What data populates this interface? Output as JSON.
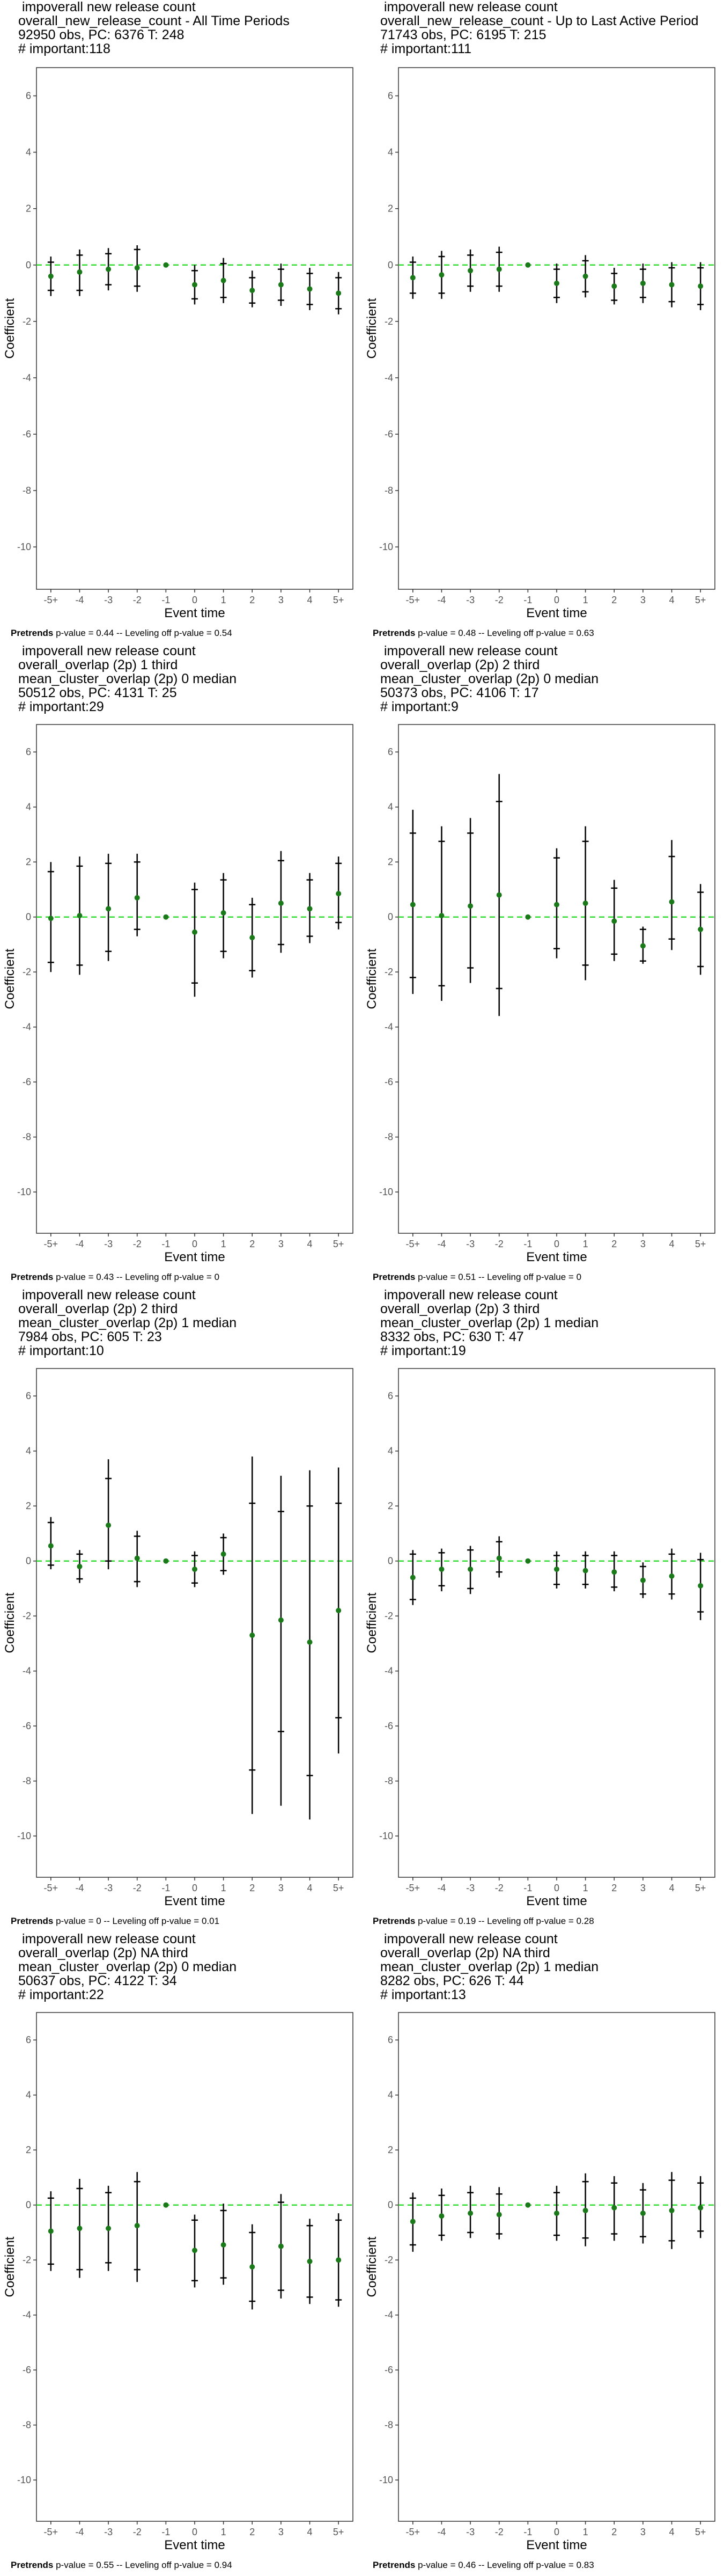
{
  "chart_data": [
    {
      "type": "scatter",
      "title_lines": [
        " impoverall new release count",
        "overall_new_release_count - All Time Periods",
        "92950 obs, PC: 6376 T: 248",
        "# important:118"
      ],
      "footer_bold": "Pretrends",
      "footer_rest": " p-value = 0.44 -- Leveling off p-value = 0.54",
      "xlabel": "Event time",
      "ylabel": "Coefficient",
      "categories": [
        "-5+",
        "-4",
        "-3",
        "-2",
        "-1",
        "0",
        "1",
        "2",
        "3",
        "4",
        "5+"
      ],
      "ylim": [
        -11.5,
        7
      ],
      "yticks": [
        6,
        4,
        2,
        0,
        -2,
        -4,
        -6,
        -8,
        -10
      ],
      "estimate": [
        -0.4,
        -0.25,
        -0.15,
        -0.1,
        0,
        -0.7,
        -0.55,
        -0.9,
        -0.7,
        -0.85,
        -1.0
      ],
      "ci95_low": [
        -1.1,
        -1.1,
        -0.9,
        -0.95,
        0,
        -1.4,
        -1.35,
        -1.5,
        -1.45,
        -1.6,
        -1.75
      ],
      "ci95_high": [
        0.3,
        0.55,
        0.6,
        0.7,
        0,
        0.0,
        0.25,
        -0.2,
        0.05,
        -0.1,
        -0.25
      ],
      "ci90_low": [
        -0.9,
        -0.9,
        -0.7,
        -0.75,
        0,
        -1.2,
        -1.15,
        -1.35,
        -1.25,
        -1.4,
        -1.55
      ],
      "ci90_high": [
        0.1,
        0.35,
        0.4,
        0.55,
        0,
        -0.2,
        0.05,
        -0.45,
        -0.15,
        -0.3,
        -0.45
      ]
    },
    {
      "type": "scatter",
      "title_lines": [
        " impoverall new release count",
        "overall_new_release_count - Up to Last Active Period",
        "71743 obs, PC: 6195 T: 215",
        "# important:111"
      ],
      "footer_bold": "Pretrends",
      "footer_rest": " p-value = 0.48 -- Leveling off p-value = 0.63",
      "xlabel": "Event time",
      "ylabel": "Coefficient",
      "categories": [
        "-5+",
        "-4",
        "-3",
        "-2",
        "-1",
        "0",
        "1",
        "2",
        "3",
        "4",
        "5+"
      ],
      "ylim": [
        -11.5,
        7
      ],
      "yticks": [
        6,
        4,
        2,
        0,
        -2,
        -4,
        -6,
        -8,
        -10
      ],
      "estimate": [
        -0.45,
        -0.35,
        -0.2,
        -0.15,
        0,
        -0.65,
        -0.4,
        -0.75,
        -0.65,
        -0.7,
        -0.75
      ],
      "ci95_low": [
        -1.2,
        -1.2,
        -0.95,
        -0.95,
        0,
        -1.35,
        -1.15,
        -1.4,
        -1.35,
        -1.5,
        -1.6
      ],
      "ci95_high": [
        0.3,
        0.5,
        0.55,
        0.65,
        0,
        0.05,
        0.35,
        -0.1,
        0.05,
        0.1,
        0.1
      ],
      "ci90_low": [
        -1.0,
        -1.0,
        -0.75,
        -0.75,
        0,
        -1.15,
        -0.95,
        -1.25,
        -1.15,
        -1.3,
        -1.4
      ],
      "ci90_high": [
        0.1,
        0.3,
        0.35,
        0.45,
        0,
        -0.15,
        0.15,
        -0.3,
        -0.15,
        -0.1,
        -0.1
      ]
    },
    {
      "type": "scatter",
      "title_lines": [
        " impoverall new release count",
        "overall_overlap (2p) 1 third",
        "mean_cluster_overlap (2p) 0 median",
        "50512 obs, PC: 4131 T: 25",
        "# important:29"
      ],
      "footer_bold": "Pretrends",
      "footer_rest": " p-value = 0.43 -- Leveling off p-value = 0",
      "xlabel": "Event time",
      "ylabel": "Coefficient",
      "categories": [
        "-5+",
        "-4",
        "-3",
        "-2",
        "-1",
        "0",
        "1",
        "2",
        "3",
        "4",
        "5+"
      ],
      "ylim": [
        -11.5,
        7
      ],
      "yticks": [
        6,
        4,
        2,
        0,
        -2,
        -4,
        -6,
        -8,
        -10
      ],
      "estimate": [
        -0.05,
        0.05,
        0.3,
        0.7,
        0,
        -0.55,
        0.15,
        -0.75,
        0.5,
        0.3,
        0.85
      ],
      "ci95_low": [
        -2.0,
        -2.1,
        -1.6,
        -0.7,
        0,
        -2.9,
        -1.5,
        -2.2,
        -1.3,
        -0.95,
        -0.45
      ],
      "ci95_high": [
        2.0,
        2.2,
        2.3,
        2.3,
        0,
        1.25,
        1.6,
        0.7,
        2.4,
        1.6,
        2.2
      ],
      "ci90_low": [
        -1.65,
        -1.75,
        -1.25,
        -0.45,
        0,
        -2.4,
        -1.25,
        -1.95,
        -1.0,
        -0.7,
        -0.2
      ],
      "ci90_high": [
        1.65,
        1.85,
        1.95,
        2.0,
        0,
        1.0,
        1.35,
        0.45,
        2.05,
        1.35,
        1.95
      ]
    },
    {
      "type": "scatter",
      "title_lines": [
        " impoverall new release count",
        "overall_overlap (2p) 2 third",
        "mean_cluster_overlap (2p) 0 median",
        "50373 obs, PC: 4106 T: 17",
        "# important:9"
      ],
      "footer_bold": "Pretrends",
      "footer_rest": " p-value = 0.51 -- Leveling off p-value = 0",
      "xlabel": "Event time",
      "ylabel": "Coefficient",
      "categories": [
        "-5+",
        "-4",
        "-3",
        "-2",
        "-1",
        "0",
        "1",
        "2",
        "3",
        "4",
        "5+"
      ],
      "ylim": [
        -11.5,
        7
      ],
      "yticks": [
        6,
        4,
        2,
        0,
        -2,
        -4,
        -6,
        -8,
        -10
      ],
      "estimate": [
        0.45,
        0.05,
        0.4,
        0.8,
        0,
        0.45,
        0.5,
        -0.15,
        -1.05,
        0.55,
        -0.45
      ],
      "ci95_low": [
        -2.8,
        -3.05,
        -2.4,
        -3.6,
        0,
        -1.5,
        -2.3,
        -1.6,
        -1.7,
        -1.2,
        -2.1
      ],
      "ci95_high": [
        3.9,
        3.3,
        3.6,
        5.2,
        0,
        2.5,
        3.3,
        1.35,
        -0.35,
        2.8,
        1.2
      ],
      "ci90_low": [
        -2.2,
        -2.5,
        -1.85,
        -2.6,
        0,
        -1.15,
        -1.75,
        -1.35,
        -1.6,
        -0.8,
        -1.8
      ],
      "ci90_high": [
        3.05,
        2.75,
        3.05,
        4.2,
        0,
        2.15,
        2.75,
        1.05,
        -0.45,
        2.2,
        0.9
      ]
    },
    {
      "type": "scatter",
      "title_lines": [
        " impoverall new release count",
        "overall_overlap (2p) 2 third",
        "mean_cluster_overlap (2p) 1 median",
        "7984 obs, PC: 605 T: 23",
        "# important:10"
      ],
      "footer_bold": "Pretrends",
      "footer_rest": " p-value = 0 -- Leveling off p-value = 0.01",
      "xlabel": "Event time",
      "ylabel": "Coefficient",
      "categories": [
        "-5+",
        "-4",
        "-3",
        "-2",
        "-1",
        "0",
        "1",
        "2",
        "3",
        "4",
        "5+"
      ],
      "ylim": [
        -11.5,
        7
      ],
      "yticks": [
        6,
        4,
        2,
        0,
        -2,
        -4,
        -6,
        -8,
        -10
      ],
      "estimate": [
        0.55,
        -0.2,
        1.3,
        0.1,
        0,
        -0.3,
        0.25,
        -2.7,
        -2.15,
        -2.95,
        -1.8
      ],
      "ci95_low": [
        -0.3,
        -0.8,
        -0.3,
        -0.95,
        0,
        -0.95,
        -0.5,
        -9.2,
        -8.9,
        -9.4,
        -7.0
      ],
      "ci95_high": [
        1.6,
        0.4,
        3.7,
        1.1,
        0,
        0.35,
        1.0,
        3.8,
        3.1,
        3.3,
        3.4
      ],
      "ci90_low": [
        -0.15,
        -0.65,
        0.0,
        -0.75,
        0,
        -0.8,
        -0.35,
        -7.6,
        -6.2,
        -7.8,
        -5.7
      ],
      "ci90_high": [
        1.4,
        0.25,
        3.0,
        0.9,
        0,
        0.2,
        0.85,
        2.1,
        1.8,
        2.0,
        2.1
      ]
    },
    {
      "type": "scatter",
      "title_lines": [
        " impoverall new release count",
        "overall_overlap (2p) 3 third",
        "mean_cluster_overlap (2p) 1 median",
        "8332 obs, PC: 630 T: 47",
        "# important:19"
      ],
      "footer_bold": "Pretrends",
      "footer_rest": " p-value = 0.19 -- Leveling off p-value = 0.28",
      "xlabel": "Event time",
      "ylabel": "Coefficient",
      "categories": [
        "-5+",
        "-4",
        "-3",
        "-2",
        "-1",
        "0",
        "1",
        "2",
        "3",
        "4",
        "5+"
      ],
      "ylim": [
        -11.5,
        7
      ],
      "yticks": [
        6,
        4,
        2,
        0,
        -2,
        -4,
        -6,
        -8,
        -10
      ],
      "estimate": [
        -0.6,
        -0.3,
        -0.3,
        0.1,
        0,
        -0.3,
        -0.35,
        -0.4,
        -0.7,
        -0.55,
        -0.9
      ],
      "ci95_low": [
        -1.6,
        -1.1,
        -1.2,
        -0.6,
        0,
        -1.0,
        -1.0,
        -1.1,
        -1.35,
        -1.4,
        -2.15
      ],
      "ci95_high": [
        0.4,
        0.45,
        0.55,
        0.9,
        0,
        0.35,
        0.35,
        0.35,
        -0.05,
        0.45,
        0.3
      ],
      "ci90_low": [
        -1.4,
        -0.9,
        -1.0,
        -0.4,
        0,
        -0.85,
        -0.85,
        -0.95,
        -1.2,
        -1.2,
        -1.85
      ],
      "ci90_high": [
        0.25,
        0.3,
        0.4,
        0.7,
        0,
        0.2,
        0.2,
        0.2,
        -0.2,
        0.25,
        0.05
      ]
    },
    {
      "type": "scatter",
      "title_lines": [
        " impoverall new release count",
        "overall_overlap (2p) NA third",
        "mean_cluster_overlap (2p) 0 median",
        "50637 obs, PC: 4122 T: 34",
        "# important:22"
      ],
      "footer_bold": "Pretrends",
      "footer_rest": " p-value = 0.55 -- Leveling off p-value = 0.94",
      "xlabel": "Event time",
      "ylabel": "Coefficient",
      "categories": [
        "-5+",
        "-4",
        "-3",
        "-2",
        "-1",
        "0",
        "1",
        "2",
        "3",
        "4",
        "5+"
      ],
      "ylim": [
        -11.5,
        7
      ],
      "yticks": [
        6,
        4,
        2,
        0,
        -2,
        -4,
        -6,
        -8,
        -10
      ],
      "estimate": [
        -0.95,
        -0.85,
        -0.85,
        -0.75,
        0,
        -1.65,
        -1.45,
        -2.25,
        -1.5,
        -2.05,
        -2.0
      ],
      "ci95_low": [
        -2.4,
        -2.65,
        -2.4,
        -2.8,
        0,
        -3.0,
        -2.9,
        -3.8,
        -3.4,
        -3.6,
        -3.7
      ],
      "ci95_high": [
        0.5,
        0.95,
        0.7,
        1.2,
        0,
        -0.35,
        0.05,
        -0.7,
        0.4,
        -0.5,
        -0.3
      ],
      "ci90_low": [
        -2.15,
        -2.35,
        -2.1,
        -2.35,
        0,
        -2.75,
        -2.65,
        -3.5,
        -3.1,
        -3.35,
        -3.45
      ],
      "ci90_high": [
        0.25,
        0.6,
        0.45,
        0.85,
        0,
        -0.55,
        -0.2,
        -1.0,
        0.1,
        -0.75,
        -0.55
      ]
    },
    {
      "type": "scatter",
      "title_lines": [
        " impoverall new release count",
        "overall_overlap (2p) NA third",
        "mean_cluster_overlap (2p) 1 median",
        "8282 obs, PC: 626 T: 44",
        "# important:13"
      ],
      "footer_bold": "Pretrends",
      "footer_rest": " p-value = 0.46 -- Leveling off p-value = 0.83",
      "xlabel": "Event time",
      "ylabel": "Coefficient",
      "categories": [
        "-5+",
        "-4",
        "-3",
        "-2",
        "-1",
        "0",
        "1",
        "2",
        "3",
        "4",
        "5+"
      ],
      "ylim": [
        -11.5,
        7
      ],
      "yticks": [
        6,
        4,
        2,
        0,
        -2,
        -4,
        -6,
        -8,
        -10
      ],
      "estimate": [
        -0.6,
        -0.4,
        -0.3,
        -0.35,
        0,
        -0.3,
        -0.2,
        -0.1,
        -0.3,
        -0.2,
        -0.1
      ],
      "ci95_low": [
        -1.7,
        -1.3,
        -1.2,
        -1.25,
        0,
        -1.3,
        -1.5,
        -1.3,
        -1.4,
        -1.6,
        -1.2
      ],
      "ci95_high": [
        0.45,
        0.6,
        0.7,
        0.65,
        0,
        0.7,
        1.15,
        1.05,
        0.8,
        1.2,
        1.05
      ],
      "ci90_low": [
        -1.45,
        -1.1,
        -1.0,
        -1.05,
        0,
        -1.1,
        -1.2,
        -1.05,
        -1.15,
        -1.3,
        -0.95
      ],
      "ci90_high": [
        0.25,
        0.35,
        0.45,
        0.4,
        0,
        0.45,
        0.85,
        0.8,
        0.55,
        0.9,
        0.8
      ]
    }
  ],
  "colors": {
    "point": "#1a7a1a",
    "zero_line": "#33dd33",
    "error_bar": "#000000",
    "panel_border": "#333333",
    "tick_text": "#555555"
  }
}
